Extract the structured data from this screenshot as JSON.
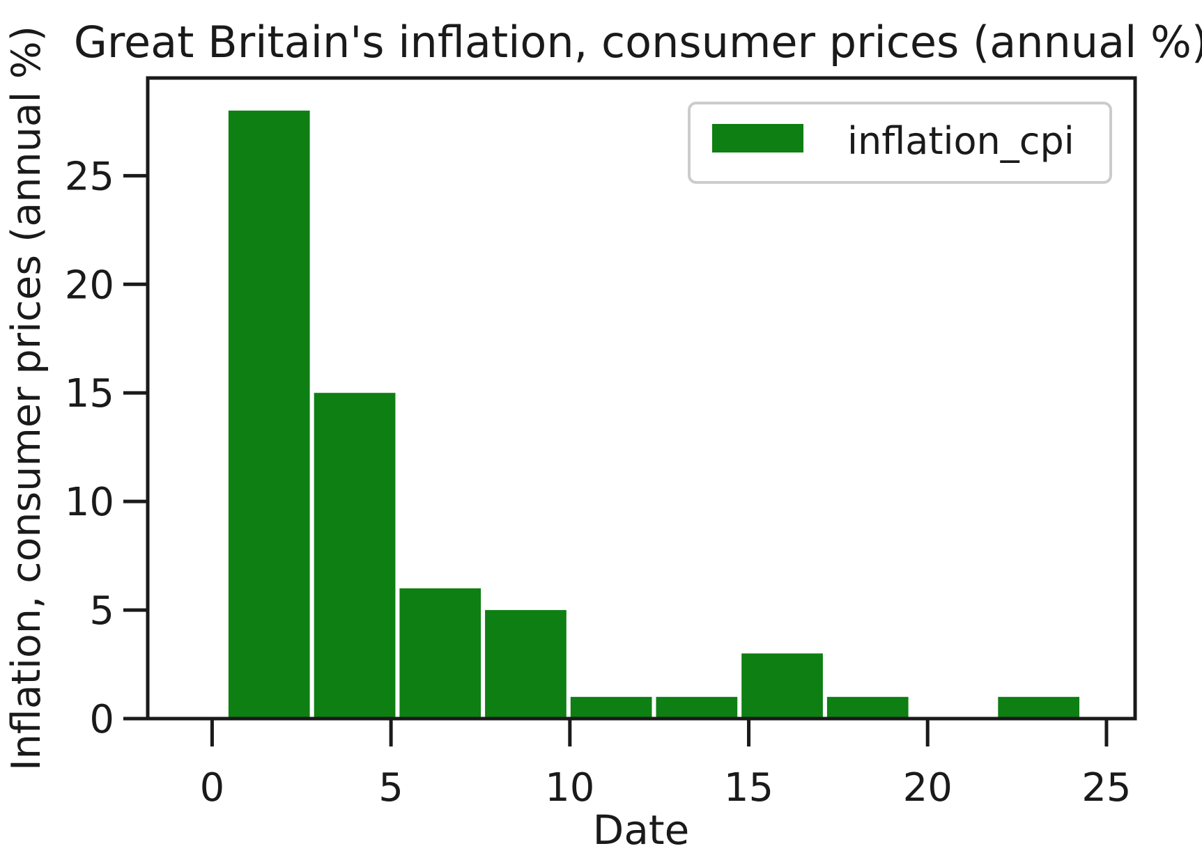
{
  "chart_data": {
    "type": "bar",
    "title": "Great Britain's inflation, consumer prices (annual %)",
    "xlabel": "Date",
    "ylabel": "Inflation, consumer prices (annual %)",
    "xlim": [
      -1.8,
      25.8
    ],
    "ylim": [
      0,
      29.5
    ],
    "xticks": [
      0,
      5,
      10,
      15,
      20,
      25
    ],
    "yticks": [
      0,
      5,
      10,
      15,
      20,
      25
    ],
    "grid": false,
    "legend_position": "top-right",
    "series": [
      {
        "name": "inflation_cpi",
        "color": "#0e7f13",
        "bins": [
          {
            "x0": 0.4,
            "x1": 2.79,
            "value": 28
          },
          {
            "x0": 2.79,
            "x1": 5.18,
            "value": 15
          },
          {
            "x0": 5.18,
            "x1": 7.57,
            "value": 6
          },
          {
            "x0": 7.57,
            "x1": 9.96,
            "value": 5
          },
          {
            "x0": 9.96,
            "x1": 12.35,
            "value": 1
          },
          {
            "x0": 12.35,
            "x1": 14.74,
            "value": 1
          },
          {
            "x0": 14.74,
            "x1": 17.13,
            "value": 3
          },
          {
            "x0": 17.13,
            "x1": 19.52,
            "value": 1
          },
          {
            "x0": 19.52,
            "x1": 21.91,
            "value": 0
          },
          {
            "x0": 21.91,
            "x1": 24.3,
            "value": 1
          }
        ]
      }
    ]
  }
}
